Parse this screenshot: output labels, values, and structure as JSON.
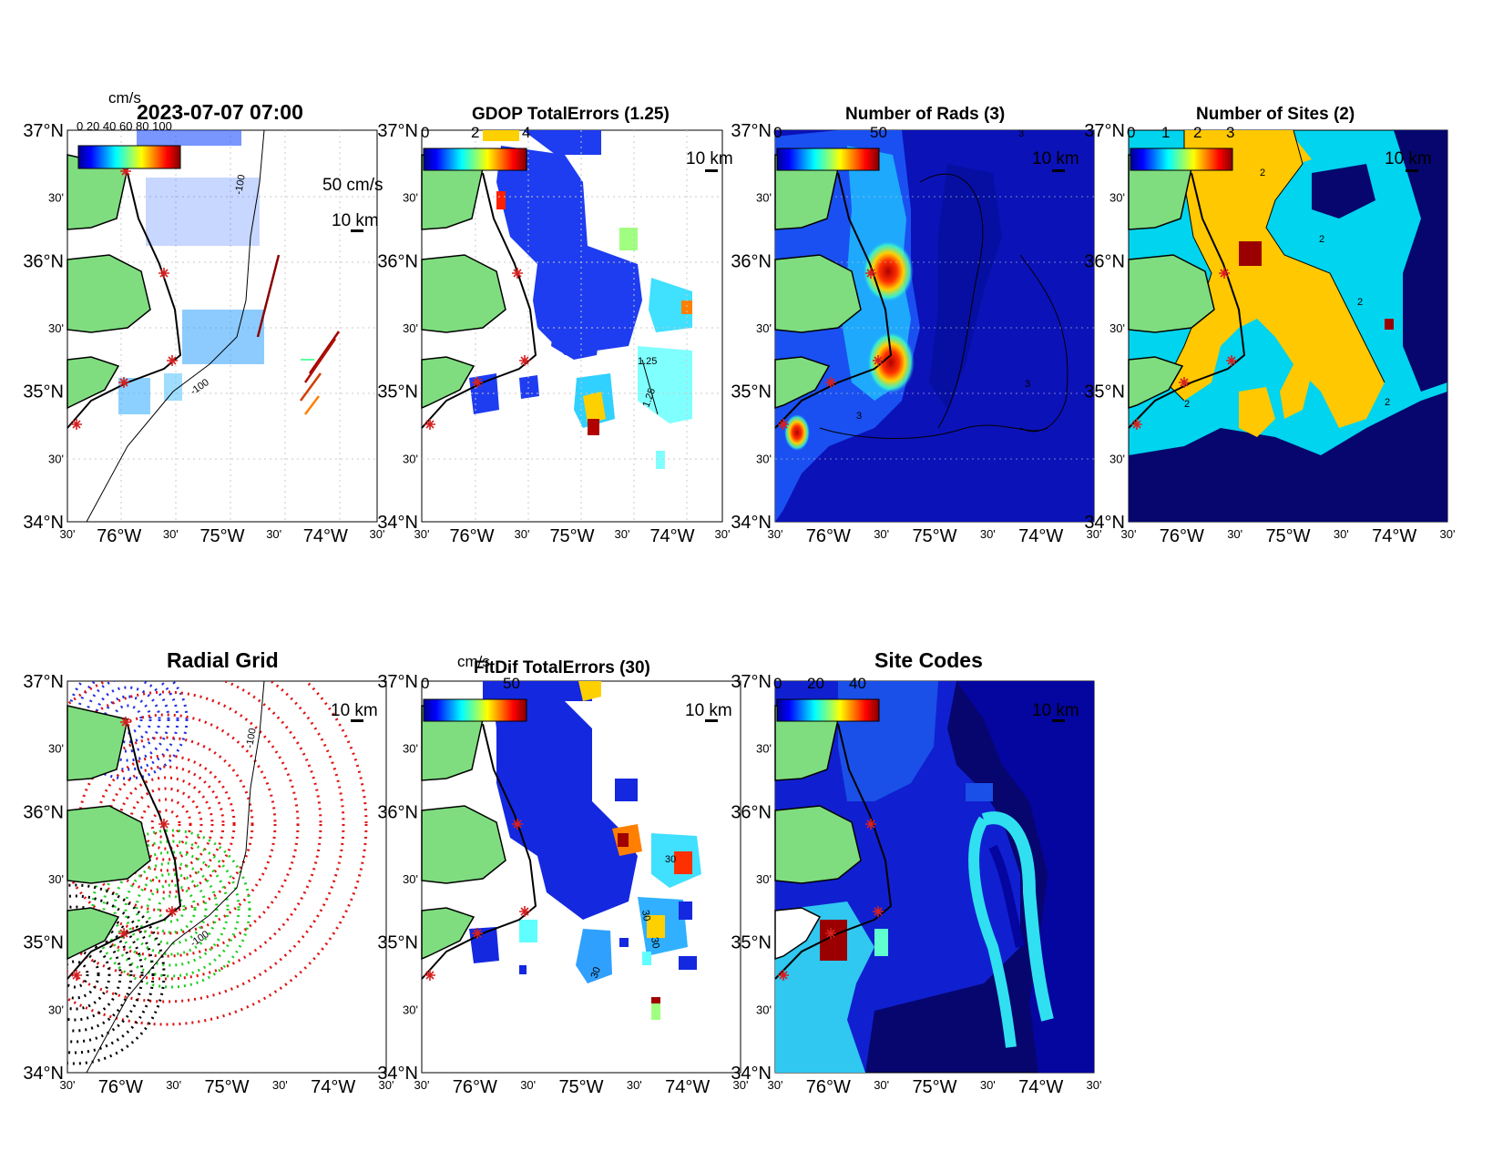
{
  "figure": {
    "timestamp": "2023-07-07 07:00",
    "lat_ticks": [
      "37°N",
      "30'",
      "36°N",
      "30'",
      "35°N",
      "30'",
      "34°N"
    ],
    "lon_ticks": [
      "30'",
      "76°W",
      "30'",
      "75°W",
      "30'",
      "74°W",
      "30'"
    ],
    "scale_label": "10 km",
    "extent": {
      "lon": [
        -76.5,
        -73.5
      ],
      "lat": [
        34.0,
        37.0
      ]
    },
    "colors": {
      "land": "#7fdd7f",
      "site_marker": "#d62020",
      "coast": "#000000",
      "grid": "#c8c8c8"
    },
    "site_locations": [
      {
        "lon": -75.95,
        "lat": 36.7
      },
      {
        "lon": -75.58,
        "lat": 35.93
      },
      {
        "lon": -75.52,
        "lat": 35.5
      },
      {
        "lon": -75.95,
        "lat": 35.21
      },
      {
        "lon": -76.42,
        "lat": 34.78
      }
    ],
    "depth_contour_label": "-100",
    "panels": [
      {
        "id": "surface-currents",
        "title": "2023-07-07 07:00",
        "colorbar_unit": "cm/s",
        "colorbar_ticks": [],
        "colorbar_label_overlap": "0 20 40 60 80 100",
        "vector_scale_label": "50 cm/s",
        "contour_labels": [
          "-100",
          "-100"
        ],
        "colormap": "jet"
      },
      {
        "id": "gdop-total-errors",
        "title": "GDOP TotalErrors (1.25)",
        "colorbar_unit": "",
        "colorbar_ticks": [
          "0",
          "2",
          "4"
        ],
        "contour_labels": [
          "1.25",
          "1.25"
        ],
        "colormap": "jet"
      },
      {
        "id": "number-of-rads",
        "title": "Number of Rads (3)",
        "colorbar_unit": "",
        "colorbar_ticks": [
          "0",
          "50"
        ],
        "contour_labels": [
          "3",
          "3",
          "3"
        ],
        "colormap": "jet"
      },
      {
        "id": "number-of-sites",
        "title": "Number of Sites (2)",
        "colorbar_unit": "",
        "colorbar_ticks": [
          "0",
          "1",
          "2",
          "3"
        ],
        "contour_labels": [
          "2",
          "2",
          "2",
          "2",
          "2"
        ],
        "colormap": "discrete",
        "category_colors": [
          "#06066e",
          "#00d4ee",
          "#ffc800",
          "#9a0000"
        ]
      },
      {
        "id": "radial-grid",
        "title": "Radial Grid",
        "colorbar_unit": "",
        "colorbar_ticks": [],
        "contour_labels": [
          "-100",
          "-100"
        ],
        "site_colors": [
          "#1f2fe0",
          "#e01010",
          "#20d020",
          "#000000"
        ]
      },
      {
        "id": "fitdif-total-errors",
        "title": "FitDif TotalErrors (30)",
        "colorbar_unit": "cm/s",
        "colorbar_ticks": [
          "0",
          "50"
        ],
        "contour_labels": [
          "30",
          "30",
          "30",
          "30"
        ],
        "colormap": "jet"
      },
      {
        "id": "site-codes",
        "title": "Site Codes",
        "colorbar_unit": "",
        "colorbar_ticks": [
          "0",
          "20",
          "40"
        ],
        "contour_labels": [],
        "colormap": "jet"
      }
    ]
  }
}
